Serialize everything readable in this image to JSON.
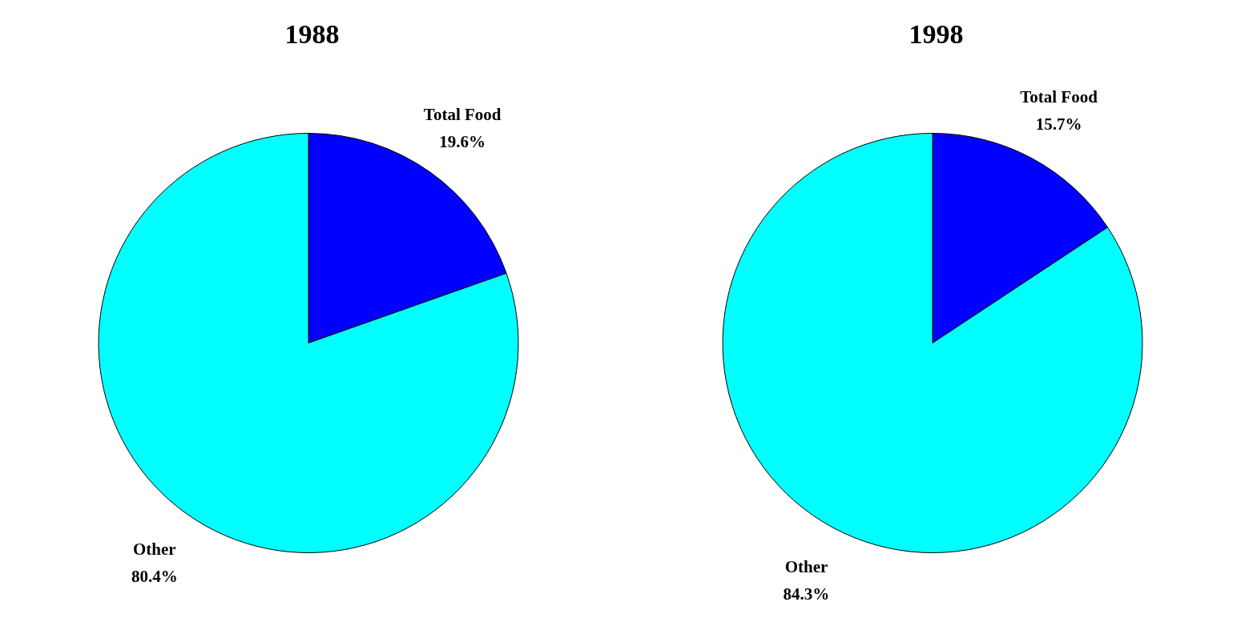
{
  "chart_data": [
    {
      "type": "pie",
      "title": "1988",
      "categories": [
        "Total Food",
        "Other"
      ],
      "values": [
        19.6,
        80.4
      ],
      "colors": [
        "#0000ff",
        "#00ffff"
      ],
      "value_labels": [
        "19.6%",
        "80.4%"
      ]
    },
    {
      "type": "pie",
      "title": "1998",
      "categories": [
        "Total Food",
        "Other"
      ],
      "values": [
        15.7,
        84.3
      ],
      "colors": [
        "#0000ff",
        "#00ffff"
      ],
      "value_labels": [
        "15.7%",
        "84.3%"
      ]
    }
  ]
}
